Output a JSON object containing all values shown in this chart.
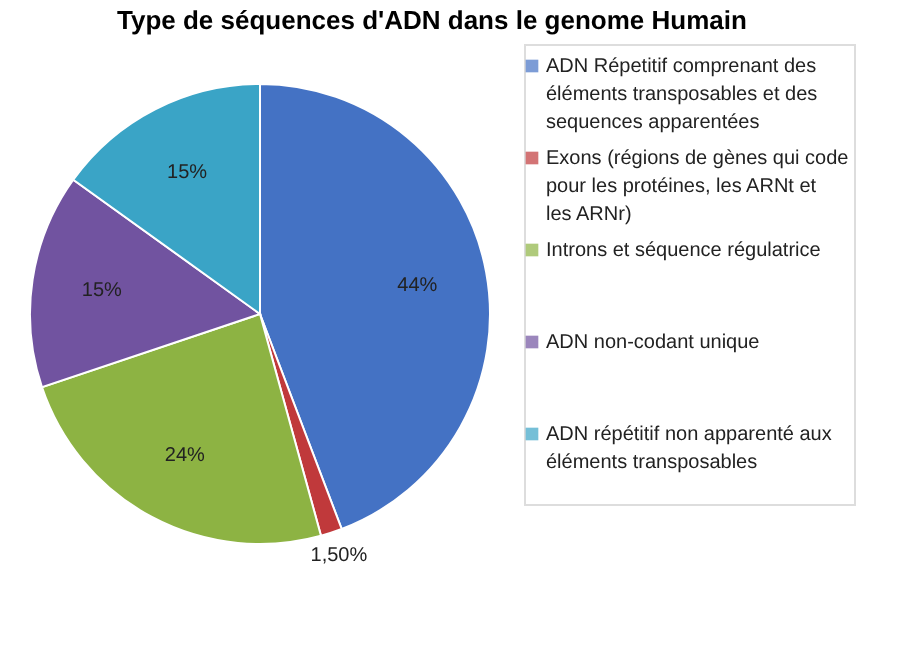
{
  "chart_data": {
    "type": "pie",
    "title": "Type de séquences d'ADN dans le genome Humain",
    "categories": [
      "ADN Répetitif comprenant des éléments transposables et des sequences apparentées",
      "Exons (régions de gènes qui code pour les protéines, les ARNt et les ARNr)",
      "Introns et séquence régulatrice",
      "ADN non-codant unique",
      "ADN répétitif non apparenté aux éléments transposables"
    ],
    "values": [
      44,
      1.5,
      24,
      15,
      15
    ],
    "value_labels": [
      "44%",
      "1,50%",
      "24%",
      "15%",
      "15%"
    ],
    "colors": [
      "#4472c4",
      "#c0393b",
      "#8db343",
      "#7153a0",
      "#3aa4c6"
    ],
    "legend": "right"
  }
}
